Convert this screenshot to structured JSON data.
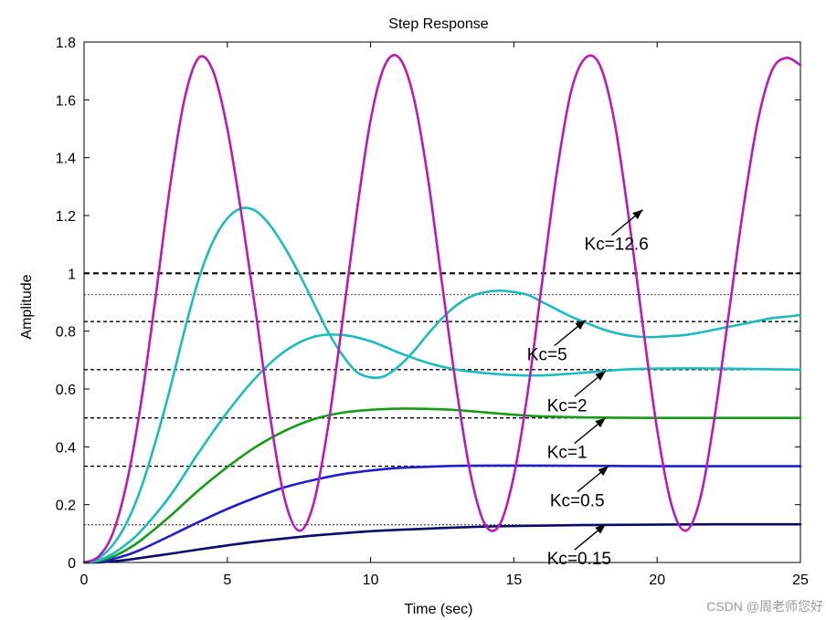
{
  "chart_data": {
    "type": "line",
    "title": "Step Response",
    "xlabel": "Time (sec)",
    "ylabel": "Amplitude",
    "xlim": [
      0,
      25
    ],
    "ylim": [
      0,
      1.8
    ],
    "xticks": [
      0,
      5,
      10,
      15,
      20,
      25
    ],
    "xtick_labels": [
      "0",
      "5",
      "10",
      "15",
      "20",
      "25"
    ],
    "yticks": [
      0,
      0.2,
      0.4,
      0.6,
      0.8,
      1,
      1.2,
      1.4,
      1.6,
      1.8
    ],
    "ytick_labels": [
      "0",
      "0.2",
      "0.4",
      "0.6",
      "0.8",
      "1",
      "1.2",
      "1.4",
      "1.6",
      "1.8"
    ],
    "grid": false,
    "steady_state_lines": [
      {
        "y": 1.0,
        "style": "dashed",
        "weight": "bold"
      },
      {
        "y": 0.926,
        "style": "dotted",
        "weight": "thin"
      },
      {
        "y": 0.833,
        "style": "dashed",
        "weight": "normal"
      },
      {
        "y": 0.667,
        "style": "dashed",
        "weight": "normal"
      },
      {
        "y": 0.5,
        "style": "dashed",
        "weight": "normal"
      },
      {
        "y": 0.333,
        "style": "dashed",
        "weight": "normal"
      },
      {
        "y": 0.13,
        "style": "dotted",
        "weight": "thin"
      }
    ],
    "series": [
      {
        "name": "Kc=0.15",
        "color": "#0a0a6e",
        "x": [
          0,
          0.3,
          0.6,
          1,
          1.5,
          2,
          3,
          4,
          5,
          6,
          7,
          8,
          9,
          10,
          11,
          12,
          13,
          14,
          15,
          17,
          20,
          22,
          25
        ],
        "y": [
          0,
          0,
          0.001,
          0.004,
          0.009,
          0.016,
          0.03,
          0.045,
          0.059,
          0.072,
          0.083,
          0.093,
          0.101,
          0.108,
          0.113,
          0.117,
          0.121,
          0.124,
          0.126,
          0.129,
          0.131,
          0.132,
          0.132
        ]
      },
      {
        "name": "Kc=0.5",
        "color": "#1e1ecf",
        "x": [
          0,
          0.5,
          1,
          1.5,
          2,
          3,
          4,
          5,
          6,
          7,
          8,
          9,
          10,
          11,
          12,
          13,
          14,
          15,
          16,
          18,
          20,
          22,
          25
        ],
        "y": [
          0,
          0.003,
          0.012,
          0.026,
          0.045,
          0.092,
          0.14,
          0.185,
          0.225,
          0.26,
          0.285,
          0.305,
          0.318,
          0.327,
          0.331,
          0.334,
          0.335,
          0.335,
          0.335,
          0.334,
          0.333,
          0.333,
          0.333
        ]
      },
      {
        "name": "Kc=1",
        "color": "#179b17",
        "x": [
          0,
          0.5,
          1,
          1.5,
          2,
          3,
          4,
          5,
          6,
          7,
          8,
          9,
          10,
          11,
          12,
          13,
          14,
          15,
          16,
          18,
          20,
          22,
          25
        ],
        "y": [
          0,
          0.005,
          0.02,
          0.045,
          0.078,
          0.16,
          0.25,
          0.33,
          0.4,
          0.455,
          0.495,
          0.518,
          0.528,
          0.532,
          0.531,
          0.527,
          0.519,
          0.511,
          0.505,
          0.501,
          0.5,
          0.5,
          0.5
        ]
      },
      {
        "name": "Kc=2",
        "color": "#1dbcbc",
        "x": [
          0,
          0.5,
          1,
          1.5,
          2,
          3,
          4,
          5,
          6,
          7,
          8,
          9,
          10,
          11,
          12,
          13,
          14,
          15,
          16,
          17,
          18,
          19,
          20,
          22,
          24,
          25
        ],
        "y": [
          0,
          0.008,
          0.03,
          0.065,
          0.11,
          0.23,
          0.38,
          0.52,
          0.64,
          0.73,
          0.78,
          0.787,
          0.765,
          0.725,
          0.69,
          0.667,
          0.655,
          0.648,
          0.647,
          0.653,
          0.661,
          0.668,
          0.671,
          0.671,
          0.668,
          0.667
        ]
      },
      {
        "name": "Kc=5",
        "color": "#1dbcbc",
        "x": [
          0,
          0.5,
          1,
          1.5,
          2,
          2.5,
          3,
          3.5,
          4,
          4.5,
          5,
          5.5,
          6,
          6.5,
          7,
          7.5,
          8,
          8.5,
          9,
          9.5,
          10,
          10.5,
          11,
          11.5,
          12,
          12.5,
          13,
          13.5,
          14,
          14.5,
          15,
          15.5,
          16,
          16.5,
          17,
          17.5,
          18,
          18.5,
          19,
          19.5,
          20,
          20.5,
          21,
          21.5,
          22,
          22.5,
          23,
          23.5,
          24,
          24.5,
          25
        ],
        "y": [
          0,
          0.015,
          0.06,
          0.14,
          0.26,
          0.42,
          0.6,
          0.8,
          0.98,
          1.11,
          1.19,
          1.225,
          1.215,
          1.165,
          1.09,
          1.0,
          0.9,
          0.8,
          0.72,
          0.66,
          0.64,
          0.645,
          0.68,
          0.73,
          0.79,
          0.845,
          0.89,
          0.92,
          0.935,
          0.94,
          0.935,
          0.925,
          0.9,
          0.875,
          0.85,
          0.83,
          0.81,
          0.795,
          0.785,
          0.78,
          0.78,
          0.783,
          0.787,
          0.795,
          0.805,
          0.815,
          0.825,
          0.835,
          0.845,
          0.85,
          0.856
        ]
      },
      {
        "name": "Kc=12.6",
        "color": "#b81bb8",
        "x": [
          0,
          0.5,
          1,
          1.5,
          2,
          2.5,
          3,
          3.5,
          4,
          4.5,
          5,
          5.5,
          6,
          6.5,
          7,
          7.5,
          8,
          8.5,
          9,
          9.5,
          10,
          10.5,
          11,
          11.5,
          12,
          12.5,
          13,
          13.5,
          14,
          14.5,
          15,
          15.5,
          16,
          16.5,
          17,
          17.5,
          18,
          18.5,
          19,
          19.5,
          20,
          20.5,
          21,
          21.5,
          22,
          22.5,
          23,
          23.5,
          24,
          24.5,
          25
        ],
        "y": [
          0,
          0.02,
          0.1,
          0.28,
          0.56,
          0.92,
          1.3,
          1.6,
          1.745,
          1.7,
          1.5,
          1.2,
          0.86,
          0.5,
          0.22,
          0.11,
          0.2,
          0.46,
          0.82,
          1.2,
          1.53,
          1.72,
          1.745,
          1.61,
          1.33,
          0.96,
          0.6,
          0.3,
          0.13,
          0.13,
          0.3,
          0.6,
          0.98,
          1.35,
          1.63,
          1.745,
          1.72,
          1.53,
          1.2,
          0.82,
          0.46,
          0.2,
          0.11,
          0.22,
          0.5,
          0.86,
          1.22,
          1.52,
          1.7,
          1.745,
          1.72
        ]
      }
    ],
    "annotations": [
      {
        "text": "Kc=12.6",
        "arrow_tip": [
          19.5,
          1.22
        ]
      },
      {
        "text": "Kc=5",
        "arrow_tip": [
          17.5,
          0.838
        ]
      },
      {
        "text": "Kc=2",
        "arrow_tip": [
          18.2,
          0.662
        ]
      },
      {
        "text": "Kc=1",
        "arrow_tip": [
          18.2,
          0.5
        ]
      },
      {
        "text": "Kc=0.5",
        "arrow_tip": [
          18.3,
          0.333
        ]
      },
      {
        "text": "Kc=0.15",
        "arrow_tip": [
          18.2,
          0.132
        ]
      }
    ]
  },
  "watermark": "CSDN @周老师您好"
}
